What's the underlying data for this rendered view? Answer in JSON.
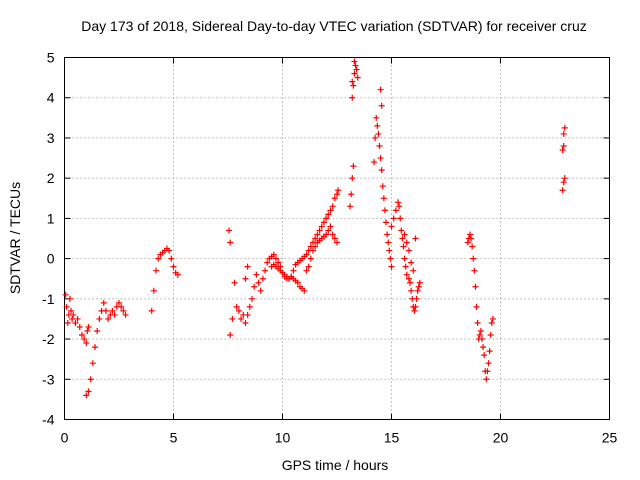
{
  "chart_data": {
    "type": "scatter",
    "title": "Day 173 of 2018, Sidereal Day-to-day VTEC variation (SDTVAR) for receiver cruz",
    "xlabel": "GPS time / hours",
    "ylabel": "SDTVAR / TECUs",
    "xlim": [
      0,
      25
    ],
    "ylim": [
      -4,
      5
    ],
    "xticks": [
      0,
      5,
      10,
      15,
      20,
      25
    ],
    "yticks": [
      -4,
      -3,
      -2,
      -1,
      0,
      1,
      2,
      3,
      4,
      5
    ],
    "grid": true,
    "marker": "+",
    "color": "#ff0000",
    "series": [
      {
        "name": "SDTVAR",
        "points": [
          [
            0.05,
            -0.9
          ],
          [
            0.1,
            -1.2
          ],
          [
            0.15,
            -1.6
          ],
          [
            0.2,
            -1.4
          ],
          [
            0.25,
            -1.0
          ],
          [
            0.3,
            -1.3
          ],
          [
            0.35,
            -1.5
          ],
          [
            0.4,
            -1.4
          ],
          [
            0.5,
            -1.6
          ],
          [
            0.6,
            -1.5
          ],
          [
            0.7,
            -1.7
          ],
          [
            0.8,
            -1.9
          ],
          [
            0.9,
            -2.0
          ],
          [
            1.0,
            -2.1
          ],
          [
            1.05,
            -1.8
          ],
          [
            1.1,
            -1.7
          ],
          [
            1.0,
            -3.4
          ],
          [
            1.1,
            -3.3
          ],
          [
            1.2,
            -3.0
          ],
          [
            1.3,
            -2.6
          ],
          [
            1.4,
            -2.2
          ],
          [
            1.5,
            -1.8
          ],
          [
            1.6,
            -1.5
          ],
          [
            1.7,
            -1.3
          ],
          [
            1.8,
            -1.1
          ],
          [
            1.9,
            -1.3
          ],
          [
            2.0,
            -1.5
          ],
          [
            2.1,
            -1.4
          ],
          [
            2.2,
            -1.3
          ],
          [
            2.3,
            -1.4
          ],
          [
            2.4,
            -1.2
          ],
          [
            2.5,
            -1.1
          ],
          [
            2.6,
            -1.2
          ],
          [
            2.7,
            -1.3
          ],
          [
            2.8,
            -1.4
          ],
          [
            4.0,
            -1.3
          ],
          [
            4.1,
            -0.8
          ],
          [
            4.2,
            -0.3
          ],
          [
            4.3,
            0.0
          ],
          [
            4.4,
            0.1
          ],
          [
            4.5,
            0.15
          ],
          [
            4.6,
            0.2
          ],
          [
            4.7,
            0.25
          ],
          [
            4.8,
            0.2
          ],
          [
            4.9,
            0.0
          ],
          [
            5.0,
            -0.2
          ],
          [
            5.1,
            -0.35
          ],
          [
            5.2,
            -0.4
          ],
          [
            7.55,
            0.7
          ],
          [
            7.6,
            0.4
          ],
          [
            7.6,
            -1.9
          ],
          [
            7.7,
            -1.5
          ],
          [
            7.8,
            -0.6
          ],
          [
            7.9,
            -1.2
          ],
          [
            8.0,
            -1.3
          ],
          [
            8.1,
            -1.5
          ],
          [
            8.2,
            -1.4
          ],
          [
            8.3,
            -0.5
          ],
          [
            8.4,
            -0.2
          ],
          [
            8.3,
            -1.6
          ],
          [
            8.4,
            -1.4
          ],
          [
            8.5,
            -1.2
          ],
          [
            8.6,
            -1.0
          ],
          [
            8.7,
            -0.7
          ],
          [
            8.8,
            -0.4
          ],
          [
            8.9,
            -0.6
          ],
          [
            9.0,
            -0.8
          ],
          [
            9.1,
            -0.5
          ],
          [
            9.2,
            -0.3
          ],
          [
            9.3,
            -0.1
          ],
          [
            9.4,
            0.0
          ],
          [
            9.5,
            0.05
          ],
          [
            9.6,
            0.1
          ],
          [
            9.7,
            0.0
          ],
          [
            9.8,
            -0.1
          ],
          [
            9.9,
            -0.2
          ],
          [
            10.0,
            -0.35
          ],
          [
            10.1,
            -0.45
          ],
          [
            10.2,
            -0.5
          ],
          [
            10.3,
            -0.5
          ],
          [
            10.4,
            -0.45
          ],
          [
            10.5,
            -0.5
          ],
          [
            10.6,
            -0.55
          ],
          [
            10.7,
            -0.6
          ],
          [
            10.8,
            -0.7
          ],
          [
            10.9,
            -0.75
          ],
          [
            11.0,
            -0.8
          ],
          [
            9.5,
            -0.2
          ],
          [
            9.6,
            -0.15
          ],
          [
            9.7,
            -0.2
          ],
          [
            9.8,
            -0.25
          ],
          [
            9.9,
            -0.3
          ],
          [
            10.0,
            -0.35
          ],
          [
            10.1,
            -0.4
          ],
          [
            10.2,
            -0.45
          ],
          [
            10.3,
            -0.5
          ],
          [
            10.4,
            -0.45
          ],
          [
            10.5,
            -0.3
          ],
          [
            10.6,
            -0.15
          ],
          [
            10.7,
            -0.1
          ],
          [
            10.8,
            -0.05
          ],
          [
            10.9,
            0.0
          ],
          [
            11.0,
            0.05
          ],
          [
            11.1,
            0.1
          ],
          [
            11.2,
            0.2
          ],
          [
            11.3,
            0.3
          ],
          [
            11.4,
            0.4
          ],
          [
            11.5,
            0.5
          ],
          [
            11.6,
            0.6
          ],
          [
            11.7,
            0.7
          ],
          [
            11.8,
            0.8
          ],
          [
            11.9,
            0.9
          ],
          [
            12.0,
            1.0
          ],
          [
            12.1,
            1.1
          ],
          [
            12.2,
            1.2
          ],
          [
            12.3,
            1.3
          ],
          [
            12.4,
            1.5
          ],
          [
            12.5,
            1.6
          ],
          [
            12.55,
            1.7
          ],
          [
            11.1,
            -0.3
          ],
          [
            11.2,
            -0.2
          ],
          [
            11.3,
            0.0
          ],
          [
            11.4,
            0.2
          ],
          [
            11.5,
            0.3
          ],
          [
            11.6,
            0.4
          ],
          [
            11.7,
            0.45
          ],
          [
            11.8,
            0.5
          ],
          [
            11.9,
            0.55
          ],
          [
            12.0,
            0.6
          ],
          [
            12.1,
            0.7
          ],
          [
            12.2,
            0.8
          ],
          [
            12.3,
            0.6
          ],
          [
            12.4,
            0.5
          ],
          [
            12.5,
            0.4
          ],
          [
            13.1,
            1.3
          ],
          [
            13.15,
            1.6
          ],
          [
            13.2,
            2.0
          ],
          [
            13.25,
            2.3
          ],
          [
            13.2,
            4.0
          ],
          [
            13.25,
            4.3
          ],
          [
            13.3,
            4.6
          ],
          [
            13.35,
            4.8
          ],
          [
            13.4,
            4.7
          ],
          [
            13.45,
            4.5
          ],
          [
            13.3,
            4.9
          ],
          [
            13.2,
            4.4
          ],
          [
            14.2,
            2.4
          ],
          [
            14.25,
            3.0
          ],
          [
            14.3,
            3.5
          ],
          [
            14.35,
            3.3
          ],
          [
            14.4,
            3.1
          ],
          [
            14.45,
            2.8
          ],
          [
            14.5,
            4.2
          ],
          [
            14.55,
            3.8
          ],
          [
            14.5,
            2.5
          ],
          [
            14.55,
            2.2
          ],
          [
            14.6,
            1.8
          ],
          [
            14.65,
            1.5
          ],
          [
            14.7,
            1.2
          ],
          [
            14.75,
            0.9
          ],
          [
            14.8,
            0.6
          ],
          [
            14.85,
            0.4
          ],
          [
            14.9,
            0.2
          ],
          [
            14.95,
            0.0
          ],
          [
            15.0,
            -0.2
          ],
          [
            15.0,
            0.8
          ],
          [
            15.1,
            1.0
          ],
          [
            15.2,
            1.2
          ],
          [
            15.3,
            1.4
          ],
          [
            15.35,
            1.3
          ],
          [
            15.4,
            1.0
          ],
          [
            15.45,
            0.7
          ],
          [
            15.5,
            0.5
          ],
          [
            15.55,
            0.3
          ],
          [
            15.6,
            0.0
          ],
          [
            15.65,
            -0.2
          ],
          [
            15.7,
            -0.4
          ],
          [
            15.8,
            -0.5
          ],
          [
            15.85,
            -0.6
          ],
          [
            15.9,
            -0.8
          ],
          [
            15.95,
            -1.0
          ],
          [
            16.0,
            -1.2
          ],
          [
            16.05,
            -1.3
          ],
          [
            16.1,
            -1.2
          ],
          [
            16.15,
            -1.0
          ],
          [
            16.2,
            -0.8
          ],
          [
            16.25,
            -0.7
          ],
          [
            16.3,
            -0.6
          ],
          [
            15.6,
            0.6
          ],
          [
            15.7,
            0.4
          ],
          [
            15.8,
            0.2
          ],
          [
            15.9,
            -0.1
          ],
          [
            16.0,
            -0.3
          ],
          [
            16.1,
            0.5
          ],
          [
            18.5,
            0.4
          ],
          [
            18.55,
            0.5
          ],
          [
            18.6,
            0.6
          ],
          [
            18.65,
            0.5
          ],
          [
            18.7,
            0.3
          ],
          [
            18.75,
            0.0
          ],
          [
            18.8,
            -0.3
          ],
          [
            18.85,
            -0.7
          ],
          [
            18.9,
            -1.2
          ],
          [
            18.95,
            -1.6
          ],
          [
            19.0,
            -2.0
          ],
          [
            19.05,
            -1.9
          ],
          [
            19.1,
            -1.8
          ],
          [
            19.15,
            -2.0
          ],
          [
            19.2,
            -2.2
          ],
          [
            19.25,
            -2.4
          ],
          [
            19.3,
            -2.8
          ],
          [
            19.35,
            -3.0
          ],
          [
            19.4,
            -2.8
          ],
          [
            19.45,
            -2.6
          ],
          [
            19.5,
            -2.3
          ],
          [
            19.55,
            -1.9
          ],
          [
            19.6,
            -1.6
          ],
          [
            19.65,
            -1.5
          ],
          [
            22.85,
            1.7
          ],
          [
            22.9,
            1.9
          ],
          [
            22.95,
            2.0
          ],
          [
            22.85,
            2.7
          ],
          [
            22.9,
            2.8
          ],
          [
            22.9,
            3.1
          ],
          [
            22.95,
            3.25
          ]
        ]
      }
    ]
  }
}
